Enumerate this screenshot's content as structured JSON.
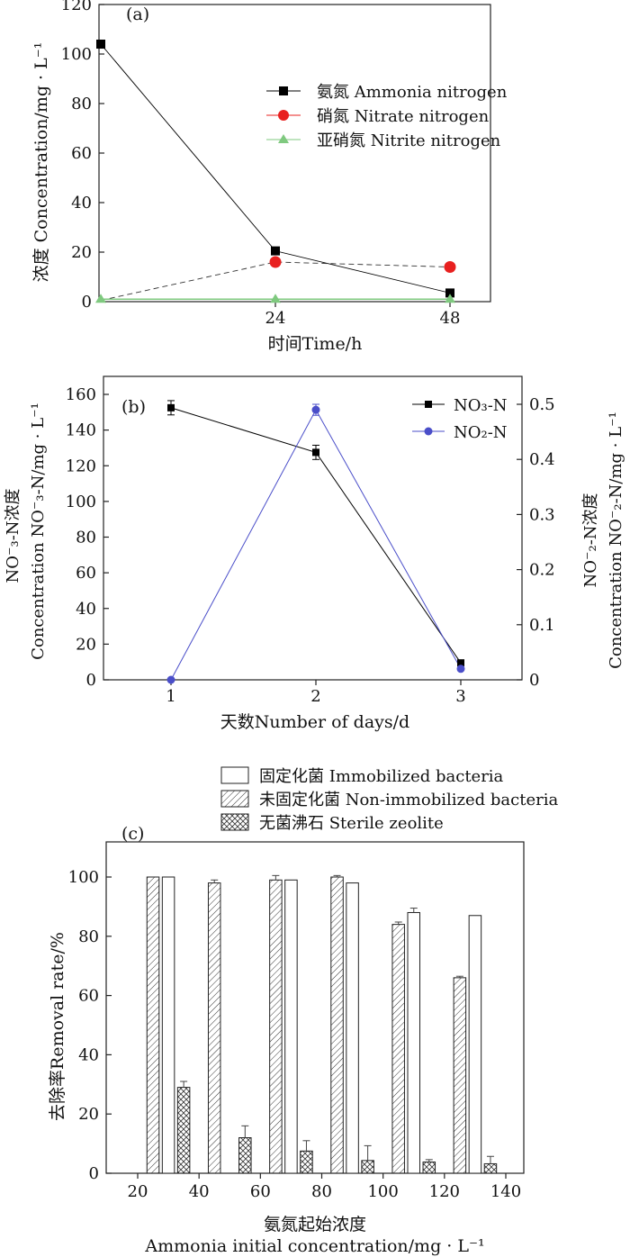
{
  "chart_data": [
    {
      "type": "line",
      "panel_label": "(a)",
      "x": [
        0,
        24,
        48
      ],
      "xticks": [
        "24",
        "48"
      ],
      "xlabel": "时间Time/h",
      "ylabel": "浓度 Concentration/mg · L⁻¹",
      "ylim": [
        0,
        120
      ],
      "yticks": [
        "0",
        "20",
        "40",
        "60",
        "80",
        "100",
        "120"
      ],
      "legend_position": "top-right",
      "series": [
        {
          "name": "氨氮 Ammonia nitrogen",
          "marker": "square",
          "color": "#000000",
          "values": [
            104,
            20.5,
            3.5
          ]
        },
        {
          "name": "硝氮 Nitrate nitrogen",
          "marker": "circle",
          "color": "#e8201f",
          "values": [
            0.5,
            16,
            14
          ]
        },
        {
          "name": "亚硝氮 Nitrite nitrogen",
          "marker": "triangle",
          "color": "#7fc97f",
          "values": [
            1,
            1,
            1
          ]
        }
      ]
    },
    {
      "type": "line",
      "panel_label": "(b)",
      "x": [
        1,
        2,
        3
      ],
      "xticks": [
        "1",
        "2",
        "3"
      ],
      "xlabel": "天数Number of days/d",
      "ylabel_left_1": "NO⁻₃-N浓度",
      "ylabel_left_2": "Concentration NO⁻₃-N/mg · L⁻¹",
      "ylabel_right_1": "NO⁻₂-N浓度",
      "ylabel_right_2": "Concentration NO⁻₂-N/mg · L⁻¹",
      "ylim_left": [
        0,
        160
      ],
      "yticks_left": [
        "0",
        "20",
        "40",
        "60",
        "80",
        "100",
        "120",
        "140",
        "160"
      ],
      "ylim_right": [
        0,
        0.5
      ],
      "yticks_right": [
        "0",
        "0.1",
        "0.2",
        "0.3",
        "0.4",
        "0.5"
      ],
      "legend_position": "top-right",
      "series": [
        {
          "name": "NO₃-N",
          "axis": "left",
          "marker": "square",
          "color": "#000000",
          "values": [
            152.5,
            127.5,
            9.5
          ],
          "errors": [
            4,
            4,
            1
          ]
        },
        {
          "name": "NO₂-N",
          "axis": "right",
          "marker": "circle",
          "color": "#4a4ec9",
          "values": [
            0,
            0.49,
            0.02
          ],
          "errors": [
            0,
            0.01,
            0
          ]
        }
      ]
    },
    {
      "type": "bar",
      "panel_label": "(c)",
      "xlabel_1": "氨氮起始浓度",
      "xlabel_2": "Ammonia initial concentration/mg · L⁻¹",
      "ylabel": "去除率Removal rate/%",
      "xlim": [
        10,
        150
      ],
      "xticks": [
        "20",
        "40",
        "60",
        "80",
        "100",
        "120",
        "140"
      ],
      "ylim": [
        0,
        105
      ],
      "yticks": [
        "0",
        "20",
        "40",
        "60",
        "80",
        "100"
      ],
      "legend_position": "top",
      "series": [
        {
          "name": "固定化菌 Immobilized bacteria",
          "pattern": "open",
          "x": [
            30,
            70,
            90,
            110,
            130
          ],
          "values": [
            100,
            99,
            98,
            88,
            87
          ],
          "errors": [
            0,
            0,
            0,
            1.5,
            0
          ]
        },
        {
          "name": "未固定化菌 Non-immobilized bacteria",
          "pattern": "diagonal",
          "x": [
            25,
            45,
            65,
            85,
            105,
            125
          ],
          "values": [
            100,
            98,
            99,
            100,
            84,
            66
          ],
          "errors": [
            0,
            1,
            1.5,
            0.5,
            0.8,
            0.5
          ]
        },
        {
          "name": "无菌沸石 Sterile zeolite",
          "pattern": "crosshatch",
          "x": [
            35,
            55,
            75,
            95,
            115,
            135
          ],
          "values": [
            29,
            12,
            7.5,
            4.3,
            3.8,
            3.2
          ],
          "errors": [
            2,
            4,
            3.5,
            5,
            0.8,
            2.5
          ]
        }
      ]
    }
  ]
}
